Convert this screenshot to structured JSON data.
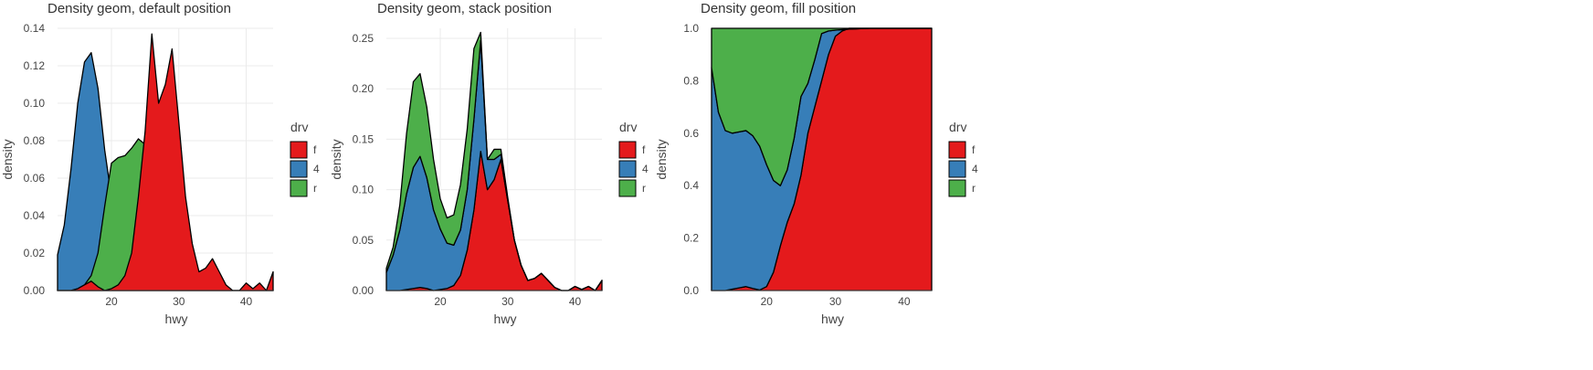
{
  "colors": {
    "f": "#e41a1c",
    "4": "#377eb8",
    "r": "#4daf4a",
    "outline": "#000000"
  },
  "legend": {
    "title": "drv",
    "items": [
      "f",
      "4",
      "r"
    ]
  },
  "chart_data": [
    {
      "type": "area",
      "position": "default",
      "title": "Density geom, default position",
      "xlabel": "hwy",
      "ylabel": "density",
      "xlim": [
        12,
        44
      ],
      "ylim": [
        0,
        0.14
      ],
      "xticks": [
        20,
        30,
        40
      ],
      "yticks": [
        0.0,
        0.02,
        0.04,
        0.06,
        0.08,
        0.1,
        0.12,
        0.14
      ],
      "ytick_labels": [
        "0.00",
        "0.02",
        "0.04",
        "0.06",
        "0.08",
        "0.10",
        "0.12",
        "0.14"
      ],
      "x": [
        12,
        13,
        14,
        15,
        16,
        17,
        18,
        19,
        20,
        21,
        22,
        23,
        24,
        25,
        26,
        27,
        28,
        29,
        30,
        31,
        32,
        33,
        34,
        35,
        36,
        37,
        38,
        39,
        40,
        41,
        42,
        43,
        44
      ],
      "series": [
        {
          "name": "4",
          "values": [
            0.019,
            0.035,
            0.065,
            0.1,
            0.122,
            0.127,
            0.108,
            0.075,
            0.05,
            0.035,
            0.025,
            0.012,
            0.005,
            0.002,
            0.001,
            0.0,
            0.0,
            0.0,
            0.0,
            0.0,
            0.0,
            0.0,
            0.0,
            0.0,
            0.0,
            0.0,
            0.0,
            0.0,
            0.0,
            0.0,
            0.0,
            0.0,
            0.0
          ]
        },
        {
          "name": "r",
          "values": [
            0.0,
            0.0,
            0.0,
            0.001,
            0.003,
            0.008,
            0.02,
            0.045,
            0.068,
            0.071,
            0.072,
            0.076,
            0.081,
            0.078,
            0.06,
            0.03,
            0.01,
            0.003,
            0.0,
            0.0,
            0.0,
            0.0,
            0.0,
            0.0,
            0.0,
            0.0,
            0.0,
            0.0,
            0.0,
            0.0,
            0.0,
            0.0,
            0.0
          ]
        },
        {
          "name": "f",
          "values": [
            0.0,
            0.0,
            0.0,
            0.001,
            0.003,
            0.005,
            0.002,
            0.0,
            0.001,
            0.003,
            0.008,
            0.02,
            0.05,
            0.085,
            0.137,
            0.1,
            0.11,
            0.129,
            0.09,
            0.05,
            0.025,
            0.01,
            0.012,
            0.017,
            0.01,
            0.003,
            0.0,
            0.0,
            0.004,
            0.001,
            0.004,
            0.0,
            0.01
          ]
        }
      ]
    },
    {
      "type": "area",
      "position": "stack",
      "title": "Density geom, stack position",
      "xlabel": "hwy",
      "ylabel": "density",
      "xlim": [
        12,
        44
      ],
      "ylim": [
        0,
        0.26
      ],
      "xticks": [
        20,
        30,
        40
      ],
      "yticks": [
        0.0,
        0.05,
        0.1,
        0.15,
        0.2,
        0.25
      ],
      "ytick_labels": [
        "0.00",
        "0.05",
        "0.10",
        "0.15",
        "0.20",
        "0.25"
      ],
      "x": [
        12,
        13,
        14,
        15,
        16,
        17,
        18,
        19,
        20,
        21,
        22,
        23,
        24,
        25,
        26,
        27,
        28,
        29,
        30,
        31,
        32,
        33,
        34,
        35,
        36,
        37,
        38,
        39,
        40,
        41,
        42,
        43,
        44
      ],
      "series": [
        {
          "name": "f",
          "values": [
            0.0,
            0.0,
            0.0,
            0.001,
            0.002,
            0.003,
            0.002,
            0.0,
            0.001,
            0.002,
            0.005,
            0.015,
            0.04,
            0.08,
            0.138,
            0.1,
            0.11,
            0.13,
            0.09,
            0.05,
            0.025,
            0.01,
            0.012,
            0.017,
            0.01,
            0.003,
            0.0,
            0.0,
            0.004,
            0.001,
            0.004,
            0.0,
            0.01
          ]
        },
        {
          "name": "4",
          "values": [
            0.018,
            0.035,
            0.06,
            0.095,
            0.12,
            0.13,
            0.11,
            0.08,
            0.06,
            0.045,
            0.04,
            0.045,
            0.06,
            0.09,
            0.11,
            0.03,
            0.02,
            0.005,
            0.001,
            0.0,
            0.0,
            0.0,
            0.0,
            0.0,
            0.0,
            0.0,
            0.0,
            0.0,
            0.0,
            0.0,
            0.0,
            0.0,
            0.0
          ]
        },
        {
          "name": "r",
          "values": [
            0.004,
            0.008,
            0.025,
            0.06,
            0.085,
            0.082,
            0.07,
            0.05,
            0.03,
            0.025,
            0.03,
            0.045,
            0.06,
            0.07,
            0.008,
            0.0,
            0.01,
            0.005,
            0.002,
            0.0,
            0.0,
            0.0,
            0.0,
            0.0,
            0.0,
            0.0,
            0.0,
            0.0,
            0.0,
            0.0,
            0.0,
            0.0,
            0.0
          ]
        }
      ]
    },
    {
      "type": "area",
      "position": "fill",
      "title": "Density geom, fill position",
      "xlabel": "hwy",
      "ylabel": "density",
      "xlim": [
        12,
        44
      ],
      "ylim": [
        0,
        1
      ],
      "xticks": [
        20,
        30,
        40
      ],
      "yticks": [
        0.0,
        0.2,
        0.4,
        0.6,
        0.8,
        1.0
      ],
      "ytick_labels": [
        "0.0",
        "0.2",
        "0.4",
        "0.6",
        "0.8",
        "1.0"
      ],
      "x": [
        12,
        13,
        14,
        15,
        16,
        17,
        18,
        19,
        20,
        21,
        22,
        23,
        24,
        25,
        26,
        27,
        28,
        29,
        30,
        31,
        32,
        33,
        34,
        35,
        36,
        37,
        38,
        39,
        40,
        41,
        42,
        43,
        44
      ],
      "series": [
        {
          "name": "f",
          "values": [
            0.0,
            0.0,
            0.0,
            0.005,
            0.01,
            0.015,
            0.008,
            0.002,
            0.015,
            0.07,
            0.17,
            0.26,
            0.33,
            0.44,
            0.6,
            0.7,
            0.8,
            0.9,
            0.97,
            0.99,
            1.0,
            1.0,
            1.0,
            1.0,
            1.0,
            1.0,
            1.0,
            1.0,
            1.0,
            1.0,
            1.0,
            1.0,
            1.0
          ]
        },
        {
          "name": "4",
          "values": [
            0.85,
            0.68,
            0.61,
            0.6,
            0.605,
            0.61,
            0.59,
            0.55,
            0.48,
            0.42,
            0.4,
            0.46,
            0.58,
            0.74,
            0.79,
            0.88,
            0.98,
            0.99,
            0.993,
            0.995,
            0.997,
            0.998,
            0.999,
            1.0,
            1.0,
            1.0,
            1.0,
            1.0,
            1.0,
            1.0,
            1.0,
            1.0,
            1.0
          ]
        },
        {
          "name": "r",
          "values": [
            1.0,
            1.0,
            1.0,
            1.0,
            1.0,
            1.0,
            1.0,
            1.0,
            1.0,
            1.0,
            1.0,
            1.0,
            1.0,
            1.0,
            1.0,
            1.0,
            1.0,
            1.0,
            1.0,
            1.0,
            1.0,
            1.0,
            1.0,
            1.0,
            1.0,
            1.0,
            1.0,
            1.0,
            1.0,
            1.0,
            1.0,
            1.0,
            1.0
          ]
        }
      ]
    }
  ]
}
